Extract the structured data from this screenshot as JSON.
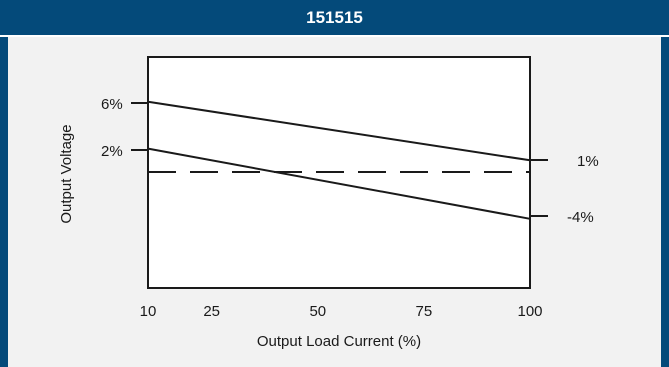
{
  "chart_data": {
    "type": "line",
    "title": "151515",
    "xlabel": "Output Load Current (%)",
    "ylabel": "Output Voltage",
    "x_ticks": [
      10,
      25,
      50,
      75,
      100
    ],
    "xlim": [
      10,
      100
    ],
    "left_labels": [
      "6%",
      "2%"
    ],
    "right_labels": [
      "1%",
      "-4%"
    ],
    "series": [
      {
        "x": [
          10,
          100
        ],
        "y": [
          6,
          1
        ],
        "style": "solid"
      },
      {
        "x": [
          10,
          100
        ],
        "y": [
          2,
          -4
        ],
        "style": "solid"
      },
      {
        "x": [
          10,
          100
        ],
        "y": [
          0,
          0
        ],
        "style": "dashed"
      }
    ],
    "colors": {
      "header": "#044a7a",
      "background": "#f2f2f2",
      "plot": "#ffffff",
      "line": "#1a1a1a"
    }
  }
}
